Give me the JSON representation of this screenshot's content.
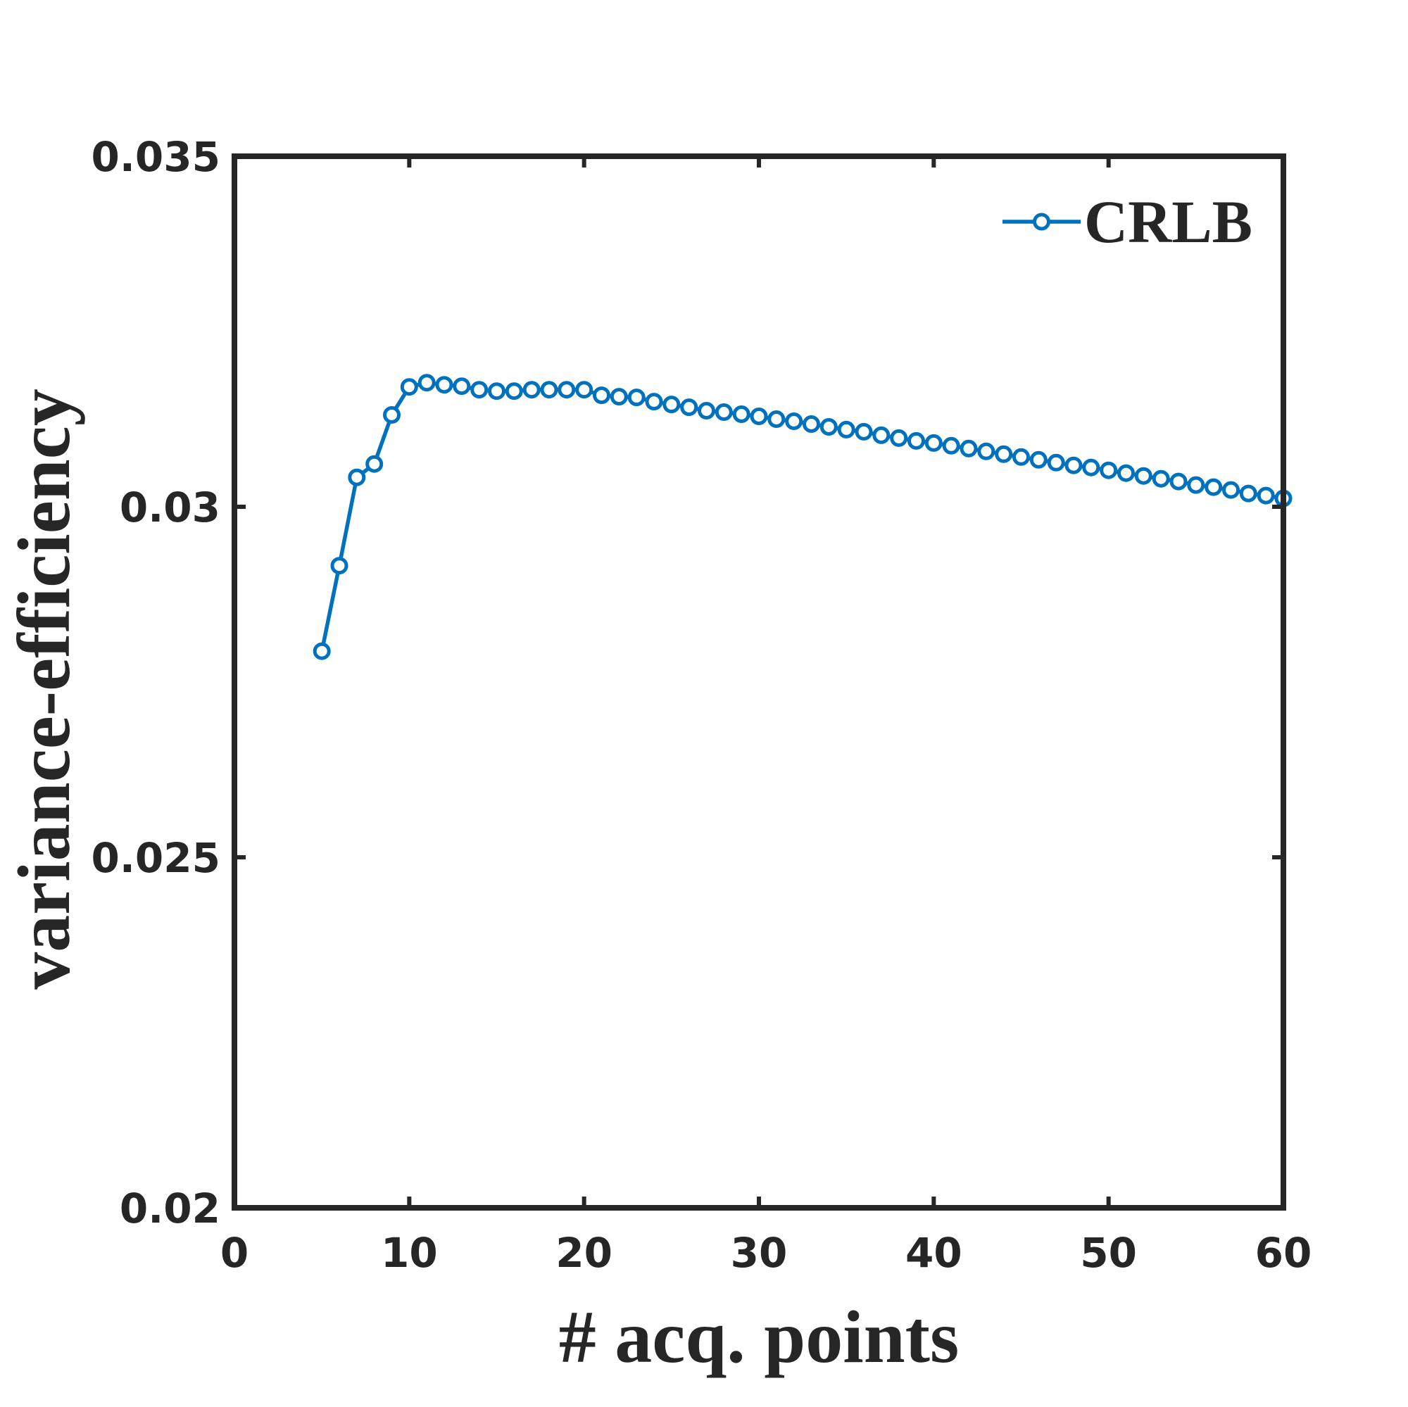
{
  "chart_data": {
    "type": "line",
    "xlabel": "# acq. points",
    "ylabel": "variance-efficiency",
    "xlim": [
      0,
      60
    ],
    "ylim": [
      0.02,
      0.035
    ],
    "xticks": [
      0,
      10,
      20,
      30,
      40,
      50,
      60
    ],
    "xtick_labels": [
      "0",
      "10",
      "20",
      "30",
      "40",
      "50",
      "60"
    ],
    "yticks": [
      0.02,
      0.025,
      0.03,
      0.035
    ],
    "ytick_labels": [
      "0.02",
      "0.025",
      "0.03",
      "0.035"
    ],
    "grid": false,
    "legend": {
      "position": "top-right"
    },
    "series": [
      {
        "name": "CRLB",
        "color": "#0072bd",
        "marker": "circle",
        "x": [
          5,
          6,
          7,
          8,
          9,
          10,
          11,
          12,
          13,
          14,
          15,
          16,
          17,
          18,
          19,
          20,
          21,
          22,
          23,
          24,
          25,
          26,
          27,
          28,
          29,
          30,
          31,
          32,
          33,
          34,
          35,
          36,
          37,
          38,
          39,
          40,
          41,
          42,
          43,
          44,
          45,
          46,
          47,
          48,
          49,
          50,
          51,
          52,
          53,
          54,
          55,
          56,
          57,
          58,
          59,
          60
        ],
        "y": [
          0.02794,
          0.02916,
          0.03042,
          0.03061,
          0.03131,
          0.03171,
          0.03177,
          0.03174,
          0.03172,
          0.03167,
          0.03165,
          0.03165,
          0.03167,
          0.03167,
          0.03167,
          0.03167,
          0.03159,
          0.03157,
          0.03156,
          0.0315,
          0.03146,
          0.03142,
          0.03137,
          0.03135,
          0.03132,
          0.03129,
          0.03125,
          0.03122,
          0.03118,
          0.03114,
          0.0311,
          0.03107,
          0.03102,
          0.03098,
          0.03094,
          0.03091,
          0.03087,
          0.03083,
          0.03079,
          0.03075,
          0.03071,
          0.03067,
          0.03063,
          0.03059,
          0.03056,
          0.03052,
          0.03048,
          0.03044,
          0.0304,
          0.03036,
          0.03031,
          0.03028,
          0.03024,
          0.03019,
          0.03016,
          0.03012
        ]
      }
    ]
  }
}
